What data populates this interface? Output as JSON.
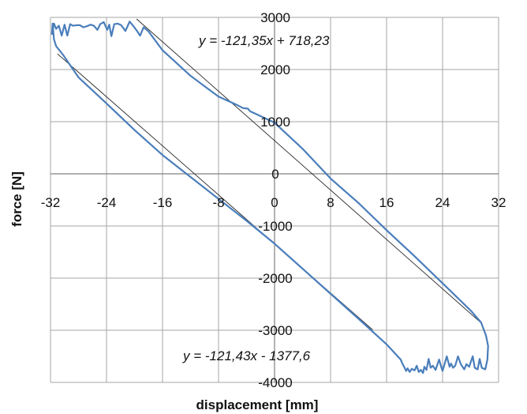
{
  "chart_data": {
    "type": "line",
    "xlabel": "displacement [mm]",
    "ylabel": "force [N]",
    "xlim": [
      -32,
      32
    ],
    "ylim": [
      -4000,
      3000
    ],
    "xticks": [
      -32,
      -24,
      -16,
      -8,
      0,
      8,
      16,
      24,
      32
    ],
    "yticks": [
      3000,
      2000,
      1000,
      0,
      -1000,
      -2000,
      -3000,
      -4000
    ],
    "grid": true,
    "annotations": [
      "y = -121,35x + 718,23",
      "y = -121,43x - 1377,6"
    ],
    "trendlines": [
      {
        "x": [
          -19.7,
          29.6
        ],
        "y": [
          2970,
          -2870
        ]
      },
      {
        "x": [
          -31.0,
          14.0
        ],
        "y": [
          2300,
          -2990
        ]
      }
    ],
    "series": [
      {
        "color": "#4a7ebb",
        "x": [
          -3.5,
          0,
          4,
          8,
          12,
          16,
          20,
          24,
          28,
          29.5,
          30.2,
          30.5,
          30.4,
          30.1,
          29.6,
          29.3,
          29.0,
          28.6,
          28.3,
          27.8,
          27.4,
          27.1,
          26.6,
          26.2,
          25.8,
          25.5,
          25.2,
          25.0,
          24.6,
          24.3,
          24.0,
          23.8,
          23.5,
          23.0,
          22.6,
          22.3,
          22.0,
          21.7,
          21.4,
          21.2,
          20.9,
          20.6,
          20.3,
          20.0,
          19.6,
          19.3,
          19.0,
          18.8,
          18.5,
          18.3,
          18.0,
          16,
          12,
          8,
          4,
          0,
          -4,
          -8,
          -12,
          -16,
          -20,
          -24,
          -28,
          -30.2,
          -31.2,
          -31.5,
          -31.7,
          -31.8,
          -31.5,
          -31.2,
          -30.8,
          -30.4,
          -30.0,
          -29.6,
          -29.2,
          -28.8,
          -28.3,
          -27.8,
          -27.3,
          -26.8,
          -26.3,
          -25.8,
          -25.3,
          -24.9,
          -24.4,
          -23.9,
          -23.6,
          -23.3,
          -22.9,
          -22.4,
          -21.9,
          -21.3,
          -20.7,
          -20.2,
          -19.7,
          -19.2,
          -18.7,
          -18.0,
          -16,
          -12,
          -8,
          -5.5,
          -4.5,
          -3.8,
          -3.5
        ],
        "y": [
          1200,
          980,
          480,
          -90,
          -560,
          -1080,
          -1580,
          -2100,
          -2620,
          -2850,
          -3100,
          -3300,
          -3560,
          -3750,
          -3720,
          -3550,
          -3750,
          -3720,
          -3500,
          -3700,
          -3650,
          -3750,
          -3650,
          -3500,
          -3680,
          -3720,
          -3640,
          -3700,
          -3500,
          -3640,
          -3780,
          -3700,
          -3560,
          -3760,
          -3680,
          -3720,
          -3550,
          -3760,
          -3700,
          -3820,
          -3760,
          -3800,
          -3680,
          -3770,
          -3740,
          -3800,
          -3730,
          -3780,
          -3700,
          -3650,
          -3560,
          -3270,
          -2780,
          -2300,
          -1820,
          -1340,
          -900,
          -480,
          -60,
          360,
          840,
          1350,
          1850,
          2280,
          2450,
          2580,
          2880,
          2680,
          2880,
          2780,
          2840,
          2650,
          2860,
          2650,
          2870,
          2840,
          2850,
          2850,
          2810,
          2830,
          2860,
          2840,
          2760,
          2870,
          2910,
          2760,
          2860,
          2640,
          2870,
          2880,
          2850,
          2740,
          2920,
          2840,
          2750,
          2650,
          2810,
          2730,
          2370,
          1880,
          1480,
          1330,
          1260,
          1250,
          1200
        ]
      }
    ]
  }
}
